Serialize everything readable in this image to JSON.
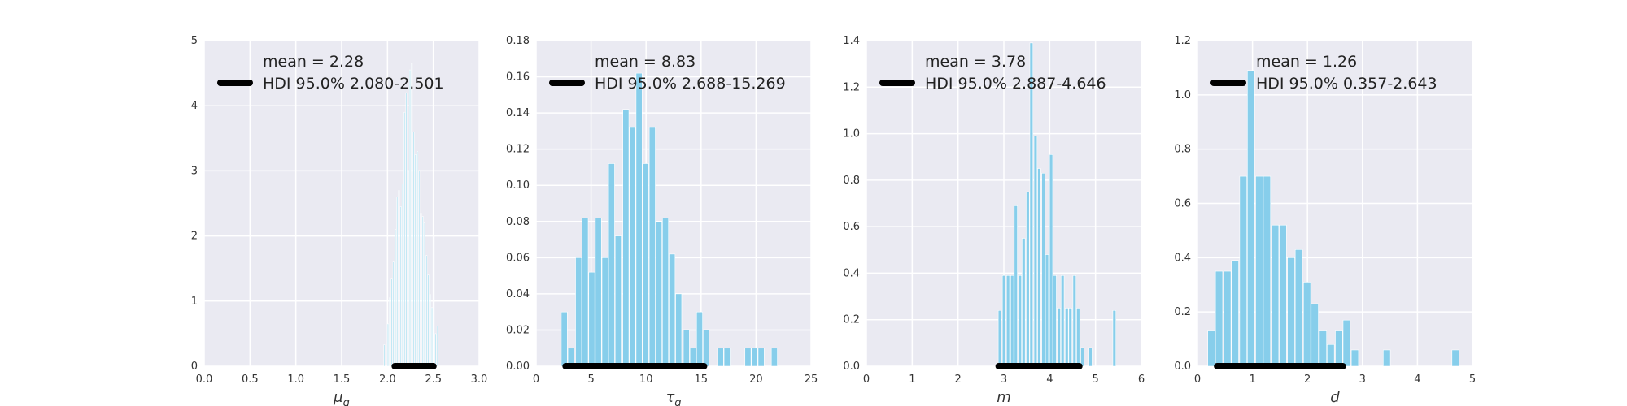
{
  "chart_data": [
    {
      "type": "bar",
      "subtype": "histogram",
      "xlabel": "μ_g",
      "xlim": [
        0,
        3.0
      ],
      "ylim": [
        0,
        5
      ],
      "xticks": [
        "0.0",
        "0.5",
        "1.0",
        "1.5",
        "2.0",
        "2.5",
        "3.0"
      ],
      "yticks": [
        "0",
        "1",
        "2",
        "3",
        "4",
        "5"
      ],
      "bar_color": "#a3dcef",
      "bin_width": 0.02,
      "bins": [
        [
          1.97,
          0.33
        ],
        [
          2.01,
          0.65
        ],
        [
          2.03,
          1.05
        ],
        [
          2.05,
          1.35
        ],
        [
          2.07,
          1.6
        ],
        [
          2.09,
          2.1
        ],
        [
          2.11,
          2.6
        ],
        [
          2.13,
          2.7
        ],
        [
          2.15,
          2.45
        ],
        [
          2.17,
          2.8
        ],
        [
          2.19,
          3.9
        ],
        [
          2.21,
          4.2
        ],
        [
          2.23,
          3.0
        ],
        [
          2.25,
          4.55
        ],
        [
          2.27,
          4.65
        ],
        [
          2.29,
          3.6
        ],
        [
          2.31,
          3.25
        ],
        [
          2.33,
          3.3
        ],
        [
          2.35,
          3.0
        ],
        [
          2.37,
          2.35
        ],
        [
          2.39,
          2.3
        ],
        [
          2.41,
          2.2
        ],
        [
          2.43,
          1.7
        ],
        [
          2.45,
          1.4
        ],
        [
          2.47,
          1.1
        ],
        [
          2.49,
          0.9
        ],
        [
          2.51,
          2.0
        ],
        [
          2.53,
          0.5
        ],
        [
          2.55,
          0.62
        ]
      ],
      "hdi": [
        2.08,
        2.501
      ],
      "legend": [
        "mean = 2.28",
        "HDI 95.0% 2.080-2.501"
      ]
    },
    {
      "type": "bar",
      "subtype": "histogram",
      "xlabel": "τ_g",
      "xlim": [
        0,
        25
      ],
      "ylim": [
        0,
        0.18
      ],
      "xticks": [
        "0",
        "5",
        "10",
        "15",
        "20",
        "25"
      ],
      "yticks": [
        "0.00",
        "0.02",
        "0.04",
        "0.06",
        "0.08",
        "0.10",
        "0.12",
        "0.14",
        "0.16",
        "0.18"
      ],
      "bar_color": "#87ceeb",
      "bin_width": 0.62,
      "bins": [
        [
          2.6,
          0.03
        ],
        [
          3.2,
          0.01
        ],
        [
          3.9,
          0.06
        ],
        [
          4.5,
          0.082
        ],
        [
          5.1,
          0.052
        ],
        [
          5.7,
          0.082
        ],
        [
          6.3,
          0.06
        ],
        [
          6.9,
          0.112
        ],
        [
          7.5,
          0.072
        ],
        [
          8.2,
          0.142
        ],
        [
          8.8,
          0.132
        ],
        [
          9.4,
          0.162
        ],
        [
          10.0,
          0.112
        ],
        [
          10.6,
          0.132
        ],
        [
          11.2,
          0.08
        ],
        [
          11.8,
          0.082
        ],
        [
          12.4,
          0.062
        ],
        [
          13.0,
          0.04
        ],
        [
          13.7,
          0.02
        ],
        [
          14.3,
          0.01
        ],
        [
          14.9,
          0.03
        ],
        [
          15.5,
          0.02
        ],
        [
          16.8,
          0.01
        ],
        [
          17.4,
          0.01
        ],
        [
          19.3,
          0.01
        ],
        [
          19.9,
          0.01
        ],
        [
          20.5,
          0.01
        ],
        [
          21.7,
          0.01
        ]
      ],
      "hdi": [
        2.688,
        15.269
      ],
      "legend": [
        "mean = 8.83",
        "HDI 95.0% 2.688-15.269"
      ]
    },
    {
      "type": "bar",
      "subtype": "histogram",
      "xlabel": "m",
      "xlim": [
        0,
        6
      ],
      "ylim": [
        0,
        1.4
      ],
      "xticks": [
        "0",
        "1",
        "2",
        "3",
        "4",
        "5",
        "6"
      ],
      "yticks": [
        "0.0",
        "0.2",
        "0.4",
        "0.6",
        "0.8",
        "1.0",
        "1.2",
        "1.4"
      ],
      "bar_color": "#87ceeb",
      "bin_width": 0.085,
      "bins": [
        [
          2.92,
          0.24
        ],
        [
          3.01,
          0.39
        ],
        [
          3.1,
          0.39
        ],
        [
          3.19,
          0.39
        ],
        [
          3.27,
          0.69
        ],
        [
          3.36,
          0.39
        ],
        [
          3.44,
          0.55
        ],
        [
          3.53,
          0.75
        ],
        [
          3.61,
          1.39
        ],
        [
          3.7,
          0.99
        ],
        [
          3.78,
          0.85
        ],
        [
          3.87,
          0.83
        ],
        [
          3.95,
          0.48
        ],
        [
          4.04,
          0.91
        ],
        [
          4.12,
          0.39
        ],
        [
          4.21,
          0.25
        ],
        [
          4.29,
          0.39
        ],
        [
          4.38,
          0.25
        ],
        [
          4.46,
          0.25
        ],
        [
          4.55,
          0.39
        ],
        [
          4.63,
          0.25
        ],
        [
          4.72,
          0.08
        ],
        [
          4.9,
          0.08
        ],
        [
          5.42,
          0.24
        ]
      ],
      "hdi": [
        2.887,
        4.646
      ],
      "legend": [
        "mean = 3.78",
        "HDI 95.0% 2.887-4.646"
      ]
    },
    {
      "type": "bar",
      "subtype": "histogram",
      "xlabel": "d",
      "xlim": [
        0,
        5
      ],
      "ylim": [
        0,
        1.2
      ],
      "xticks": [
        "0",
        "1",
        "2",
        "3",
        "4",
        "5"
      ],
      "yticks": [
        "0.0",
        "0.2",
        "0.4",
        "0.6",
        "0.8",
        "1.0",
        "1.2"
      ],
      "bar_color": "#87ceeb",
      "bin_width": 0.145,
      "bins": [
        [
          0.26,
          0.13
        ],
        [
          0.4,
          0.35
        ],
        [
          0.55,
          0.35
        ],
        [
          0.69,
          0.39
        ],
        [
          0.84,
          0.7
        ],
        [
          0.98,
          1.09
        ],
        [
          1.13,
          0.7
        ],
        [
          1.27,
          0.7
        ],
        [
          1.42,
          0.52
        ],
        [
          1.56,
          0.52
        ],
        [
          1.71,
          0.4
        ],
        [
          1.85,
          0.43
        ],
        [
          2.0,
          0.31
        ],
        [
          2.14,
          0.23
        ],
        [
          2.29,
          0.13
        ],
        [
          2.43,
          0.08
        ],
        [
          2.58,
          0.13
        ],
        [
          2.72,
          0.17
        ],
        [
          2.87,
          0.06
        ],
        [
          3.45,
          0.06
        ],
        [
          4.7,
          0.06
        ]
      ],
      "hdi": [
        0.357,
        2.643
      ],
      "legend": [
        "mean = 1.26",
        "HDI 95.0% 0.357-2.643"
      ]
    }
  ]
}
